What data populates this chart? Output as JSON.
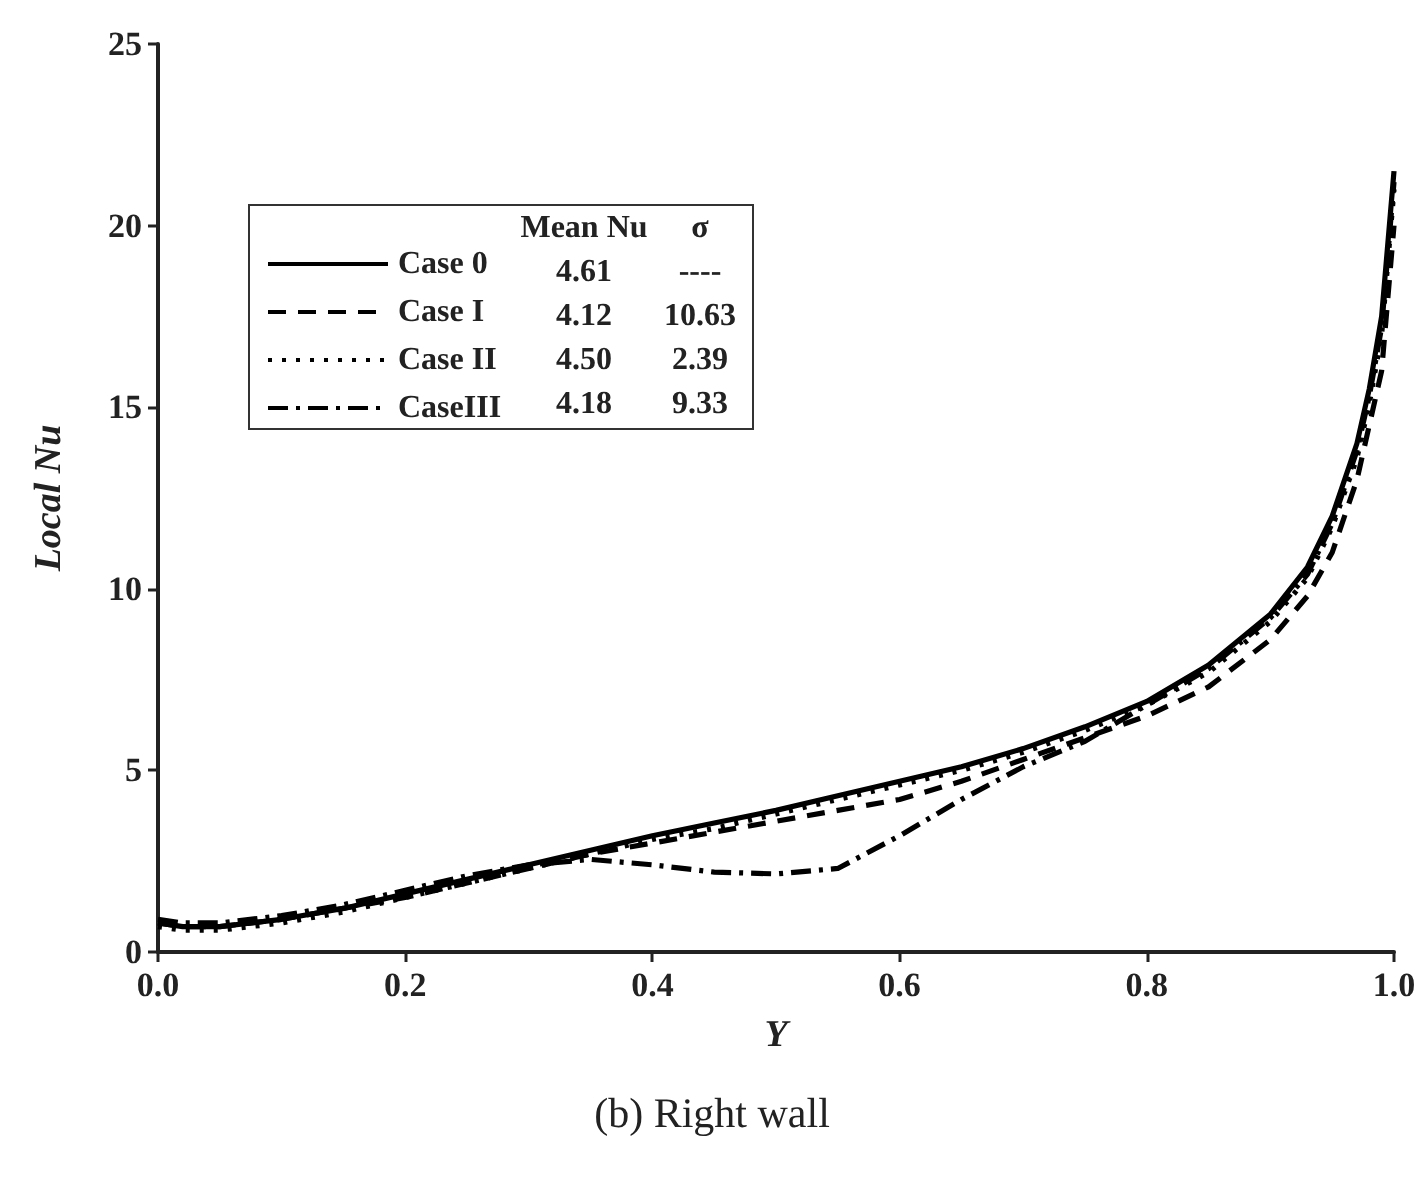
{
  "chart_data": {
    "type": "line",
    "title": "(b) Right wall",
    "xlabel": "Y",
    "ylabel": "Local Nu",
    "x": [
      0,
      0.02,
      0.05,
      0.1,
      0.15,
      0.2,
      0.25,
      0.3,
      0.35,
      0.4,
      0.45,
      0.5,
      0.55,
      0.6,
      0.65,
      0.7,
      0.75,
      0.8,
      0.85,
      0.9,
      0.93,
      0.95,
      0.97,
      0.98,
      0.99,
      1.0
    ],
    "series": [
      {
        "name": "Case 0",
        "color": "#000000",
        "line_style": "solid",
        "values": [
          0.8,
          0.7,
          0.7,
          0.9,
          1.2,
          1.6,
          2.0,
          2.4,
          2.8,
          3.2,
          3.55,
          3.9,
          4.3,
          4.7,
          5.1,
          5.6,
          6.2,
          6.9,
          7.9,
          9.3,
          10.6,
          12.0,
          14.0,
          15.5,
          17.5,
          21.5
        ]
      },
      {
        "name": "Case I",
        "color": "#000000",
        "line_style": "dashed",
        "values": [
          0.8,
          0.7,
          0.7,
          0.9,
          1.2,
          1.5,
          1.9,
          2.3,
          2.7,
          3.0,
          3.3,
          3.6,
          3.9,
          4.2,
          4.7,
          5.3,
          5.9,
          6.5,
          7.3,
          8.6,
          9.8,
          11.0,
          13.0,
          14.5,
          16.0,
          20.0
        ]
      },
      {
        "name": "Case II",
        "color": "#000000",
        "line_style": "dotted",
        "values": [
          0.7,
          0.6,
          0.6,
          0.8,
          1.1,
          1.5,
          1.9,
          2.3,
          2.7,
          3.1,
          3.4,
          3.8,
          4.2,
          4.6,
          5.0,
          5.5,
          6.1,
          6.8,
          7.7,
          9.1,
          10.3,
          11.7,
          13.6,
          15.1,
          17.0,
          21.0
        ]
      },
      {
        "name": "CaseIII",
        "color": "#000000",
        "line_style": "dashdot",
        "values": [
          0.9,
          0.8,
          0.8,
          1.0,
          1.3,
          1.7,
          2.1,
          2.4,
          2.55,
          2.4,
          2.2,
          2.15,
          2.3,
          3.2,
          4.2,
          5.1,
          5.8,
          6.8,
          7.8,
          9.2,
          10.4,
          11.8,
          13.8,
          15.3,
          17.2,
          21.2
        ]
      }
    ],
    "annotations": [
      "Mean Nu",
      "σ",
      "4.61",
      "----",
      "4.12",
      "10.63",
      "4.50",
      "2.39",
      "4.18",
      "9.33"
    ],
    "xlim": [
      0,
      1.0
    ],
    "xticks": [
      {
        "value": 0,
        "label": "0.0"
      },
      0.2,
      0.4,
      0.6,
      0.8,
      {
        "value": 1,
        "label": "1.0"
      }
    ],
    "ylim": [
      0,
      25
    ],
    "yticks": [
      0,
      5,
      10,
      15,
      20,
      25
    ],
    "grid": false,
    "legend": "top left",
    "marker": "none"
  }
}
